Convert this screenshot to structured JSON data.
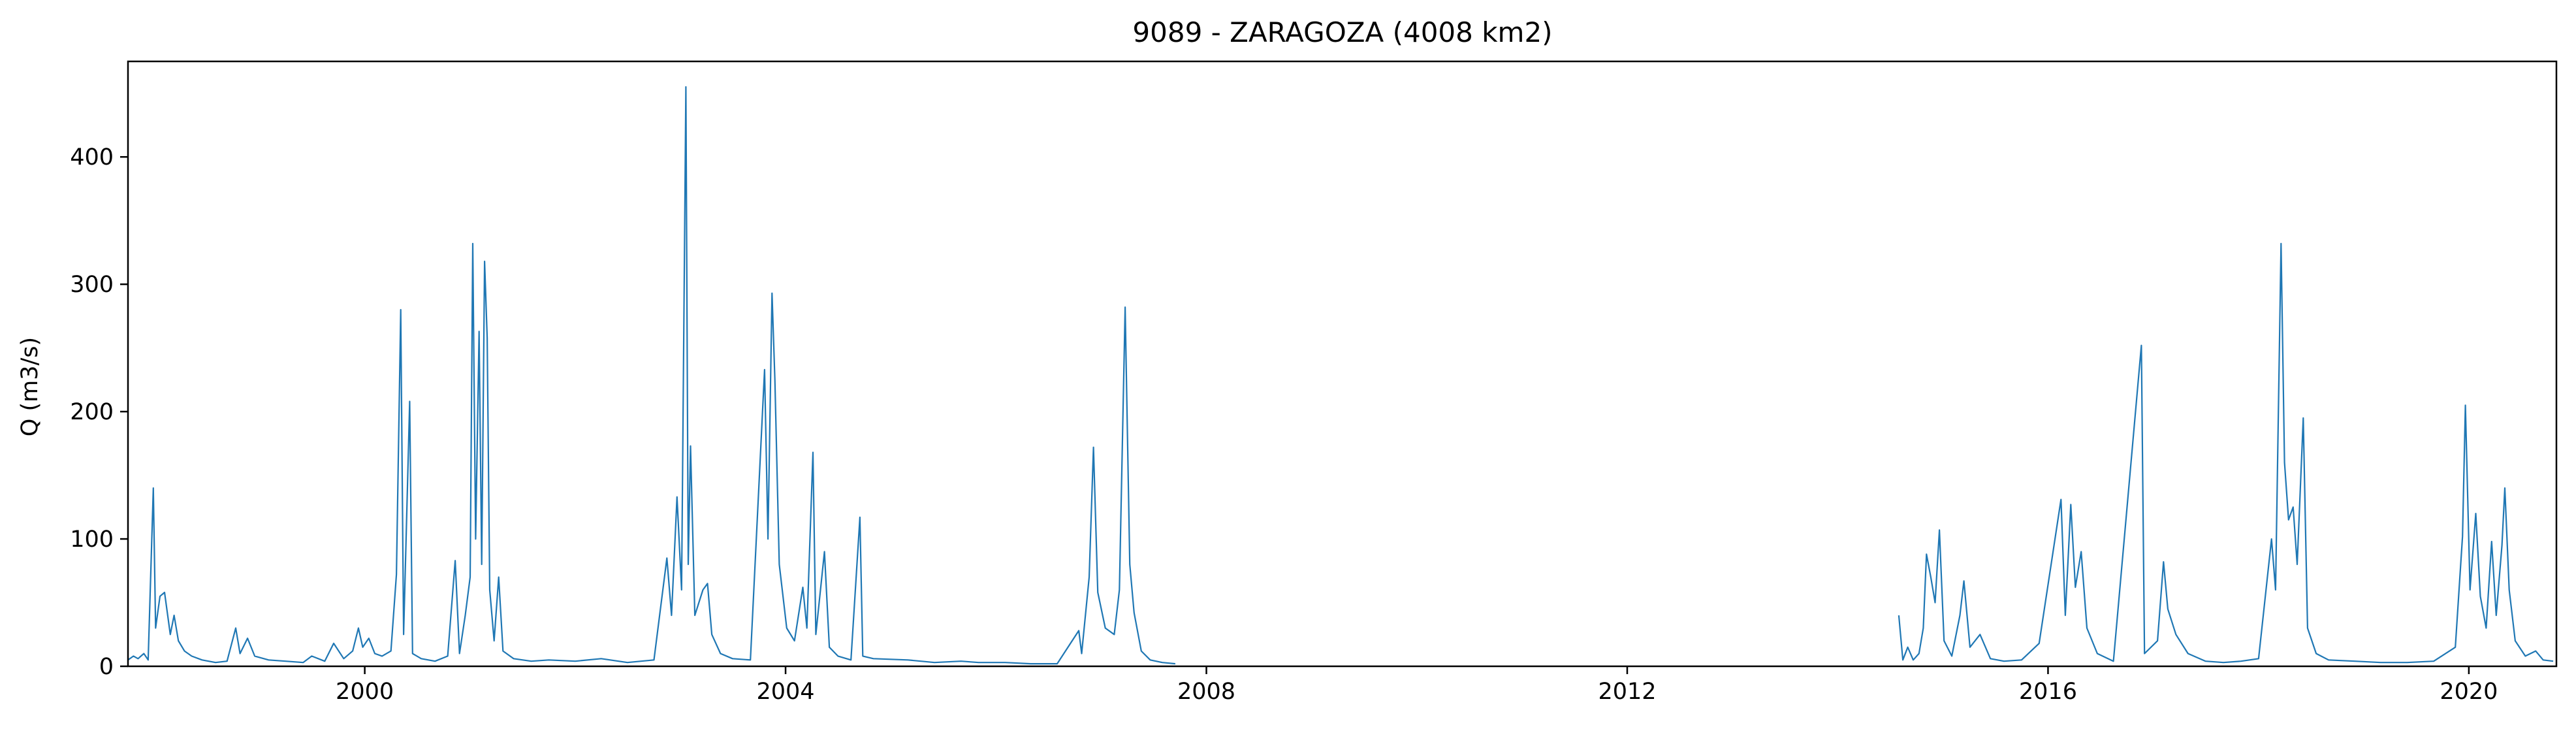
{
  "chart_data": {
    "type": "line",
    "title": "9089 - ZARAGOZA (4008 km2)",
    "xlabel": "",
    "ylabel": "Q (m3/s)",
    "xlim": [
      "1997-10-01",
      "2020-10-31"
    ],
    "ylim": [
      0,
      475
    ],
    "grid": false,
    "legend": "none",
    "line_color": "#1f77b4",
    "x_ticks": [
      {
        "label": "2000",
        "date": "2000-01-01"
      },
      {
        "label": "2004",
        "date": "2004-01-01"
      },
      {
        "label": "2008",
        "date": "2008-01-01"
      },
      {
        "label": "2012",
        "date": "2012-01-01"
      },
      {
        "label": "2016",
        "date": "2016-01-01"
      },
      {
        "label": "2020",
        "date": "2020-01-01"
      }
    ],
    "y_ticks": [
      {
        "label": "0",
        "value": 0
      },
      {
        "label": "100",
        "value": 100
      },
      {
        "label": "200",
        "value": 200
      },
      {
        "label": "300",
        "value": 300
      },
      {
        "label": "400",
        "value": 400
      }
    ],
    "series": [
      {
        "segments": [
          [
            [
              "1997-10-01",
              5
            ],
            [
              "1997-10-20",
              8
            ],
            [
              "1997-11-05",
              6
            ],
            [
              "1997-11-25",
              10
            ],
            [
              "1997-12-10",
              5
            ],
            [
              "1997-12-28",
              140
            ],
            [
              "1998-01-05",
              30
            ],
            [
              "1998-01-20",
              55
            ],
            [
              "1998-02-05",
              58
            ],
            [
              "1998-02-25",
              25
            ],
            [
              "1998-03-10",
              40
            ],
            [
              "1998-03-25",
              20
            ],
            [
              "1998-04-15",
              12
            ],
            [
              "1998-05-10",
              8
            ],
            [
              "1998-06-15",
              5
            ],
            [
              "1998-08-01",
              3
            ],
            [
              "1998-09-10",
              4
            ],
            [
              "1998-10-10",
              30
            ],
            [
              "1998-10-25",
              10
            ],
            [
              "1998-11-20",
              22
            ],
            [
              "1998-12-15",
              8
            ],
            [
              "1999-02-01",
              5
            ],
            [
              "1999-04-01",
              4
            ],
            [
              "1999-06-01",
              3
            ],
            [
              "1999-07-01",
              8
            ],
            [
              "1999-08-15",
              4
            ],
            [
              "1999-09-15",
              18
            ],
            [
              "1999-10-20",
              6
            ],
            [
              "1999-11-20",
              12
            ],
            [
              "1999-12-10",
              30
            ],
            [
              "1999-12-25",
              15
            ],
            [
              "2000-01-15",
              22
            ],
            [
              "2000-02-05",
              10
            ],
            [
              "2000-03-01",
              8
            ],
            [
              "2000-04-01",
              12
            ],
            [
              "2000-04-20",
              72
            ],
            [
              "2000-05-05",
              280
            ],
            [
              "2000-05-15",
              25
            ],
            [
              "2000-06-05",
              208
            ],
            [
              "2000-06-15",
              10
            ],
            [
              "2000-07-15",
              6
            ],
            [
              "2000-09-01",
              4
            ],
            [
              "2000-10-15",
              8
            ],
            [
              "2000-11-10",
              83
            ],
            [
              "2000-11-25",
              10
            ],
            [
              "2000-12-15",
              40
            ],
            [
              "2001-01-01",
              70
            ],
            [
              "2001-01-10",
              332
            ],
            [
              "2001-01-20",
              100
            ],
            [
              "2001-02-01",
              263
            ],
            [
              "2001-02-10",
              80
            ],
            [
              "2001-02-20",
              318
            ],
            [
              "2001-03-01",
              258
            ],
            [
              "2001-03-10",
              60
            ],
            [
              "2001-03-25",
              20
            ],
            [
              "2001-04-10",
              70
            ],
            [
              "2001-04-25",
              12
            ],
            [
              "2001-06-01",
              6
            ],
            [
              "2001-08-01",
              4
            ],
            [
              "2001-10-01",
              5
            ],
            [
              "2002-01-01",
              4
            ],
            [
              "2002-04-01",
              6
            ],
            [
              "2002-07-01",
              3
            ],
            [
              "2002-10-01",
              5
            ],
            [
              "2002-11-15",
              85
            ],
            [
              "2002-12-01",
              40
            ],
            [
              "2002-12-20",
              133
            ],
            [
              "2003-01-05",
              60
            ],
            [
              "2003-01-20",
              455
            ],
            [
              "2003-01-28",
              80
            ],
            [
              "2003-02-05",
              173
            ],
            [
              "2003-02-20",
              40
            ],
            [
              "2003-03-20",
              60
            ],
            [
              "2003-04-05",
              65
            ],
            [
              "2003-04-20",
              25
            ],
            [
              "2003-05-20",
              10
            ],
            [
              "2003-07-01",
              6
            ],
            [
              "2003-09-01",
              5
            ],
            [
              "2003-10-20",
              233
            ],
            [
              "2003-11-01",
              100
            ],
            [
              "2003-11-15",
              293
            ],
            [
              "2003-11-25",
              225
            ],
            [
              "2003-12-10",
              80
            ],
            [
              "2004-01-05",
              30
            ],
            [
              "2004-02-01",
              20
            ],
            [
              "2004-03-01",
              62
            ],
            [
              "2004-03-15",
              30
            ],
            [
              "2004-04-05",
              168
            ],
            [
              "2004-04-15",
              25
            ],
            [
              "2004-05-15",
              90
            ],
            [
              "2004-06-01",
              15
            ],
            [
              "2004-07-01",
              8
            ],
            [
              "2004-08-15",
              5
            ],
            [
              "2004-09-15",
              117
            ],
            [
              "2004-09-25",
              8
            ],
            [
              "2004-11-01",
              6
            ],
            [
              "2005-03-01",
              5
            ],
            [
              "2005-06-01",
              3
            ],
            [
              "2005-09-01",
              4
            ],
            [
              "2005-11-01",
              3
            ],
            [
              "2006-02-01",
              3
            ],
            [
              "2006-05-01",
              2
            ],
            [
              "2006-08-01",
              2
            ],
            [
              "2006-10-15",
              28
            ],
            [
              "2006-10-25",
              10
            ],
            [
              "2006-11-20",
              70
            ],
            [
              "2006-12-05",
              172
            ],
            [
              "2006-12-20",
              58
            ],
            [
              "2007-01-15",
              30
            ],
            [
              "2007-02-15",
              25
            ],
            [
              "2007-03-05",
              60
            ],
            [
              "2007-03-25",
              282
            ],
            [
              "2007-04-10",
              80
            ],
            [
              "2007-04-25",
              42
            ],
            [
              "2007-05-20",
              12
            ],
            [
              "2007-06-20",
              5
            ],
            [
              "2007-08-01",
              3
            ],
            [
              "2007-09-15",
              2
            ]
          ],
          [
            [
              "2014-08-01",
              40
            ],
            [
              "2014-08-15",
              5
            ],
            [
              "2014-09-01",
              15
            ],
            [
              "2014-09-20",
              5
            ],
            [
              "2014-10-10",
              10
            ],
            [
              "2014-10-25",
              30
            ],
            [
              "2014-11-05",
              88
            ],
            [
              "2014-11-20",
              70
            ],
            [
              "2014-12-05",
              50
            ],
            [
              "2014-12-20",
              107
            ],
            [
              "2015-01-05",
              20
            ],
            [
              "2015-02-01",
              8
            ],
            [
              "2015-03-01",
              40
            ],
            [
              "2015-03-15",
              67
            ],
            [
              "2015-04-05",
              15
            ],
            [
              "2015-05-10",
              25
            ],
            [
              "2015-06-15",
              6
            ],
            [
              "2015-08-01",
              4
            ],
            [
              "2015-10-01",
              5
            ],
            [
              "2015-12-01",
              18
            ],
            [
              "2016-02-15",
              131
            ],
            [
              "2016-03-01",
              40
            ],
            [
              "2016-03-20",
              127
            ],
            [
              "2016-04-05",
              62
            ],
            [
              "2016-04-25",
              90
            ],
            [
              "2016-05-15",
              30
            ],
            [
              "2016-06-20",
              10
            ],
            [
              "2016-08-15",
              4
            ],
            [
              "2016-11-20",
              252
            ],
            [
              "2016-12-01",
              10
            ],
            [
              "2017-01-15",
              20
            ],
            [
              "2017-02-05",
              82
            ],
            [
              "2017-02-20",
              45
            ],
            [
              "2017-03-20",
              25
            ],
            [
              "2017-05-01",
              10
            ],
            [
              "2017-07-01",
              4
            ],
            [
              "2017-09-01",
              3
            ],
            [
              "2017-11-01",
              4
            ],
            [
              "2018-01-01",
              6
            ],
            [
              "2018-02-15",
              100
            ],
            [
              "2018-03-01",
              60
            ],
            [
              "2018-03-20",
              332
            ],
            [
              "2018-04-01",
              160
            ],
            [
              "2018-04-15",
              115
            ],
            [
              "2018-05-01",
              125
            ],
            [
              "2018-05-15",
              80
            ],
            [
              "2018-06-05",
              195
            ],
            [
              "2018-06-20",
              30
            ],
            [
              "2018-07-20",
              10
            ],
            [
              "2018-09-01",
              5
            ],
            [
              "2018-12-01",
              4
            ],
            [
              "2019-03-01",
              3
            ],
            [
              "2019-06-01",
              3
            ],
            [
              "2019-09-01",
              4
            ],
            [
              "2019-11-15",
              15
            ],
            [
              "2019-12-10",
              102
            ],
            [
              "2019-12-20",
              205
            ],
            [
              "2020-01-05",
              60
            ],
            [
              "2020-01-25",
              120
            ],
            [
              "2020-02-10",
              55
            ],
            [
              "2020-03-01",
              30
            ],
            [
              "2020-03-20",
              98
            ],
            [
              "2020-04-05",
              40
            ],
            [
              "2020-04-25",
              95
            ],
            [
              "2020-05-05",
              140
            ],
            [
              "2020-05-20",
              60
            ],
            [
              "2020-06-10",
              20
            ],
            [
              "2020-07-15",
              8
            ],
            [
              "2020-08-20",
              12
            ],
            [
              "2020-09-15",
              5
            ],
            [
              "2020-10-20",
              4
            ]
          ]
        ]
      }
    ]
  }
}
